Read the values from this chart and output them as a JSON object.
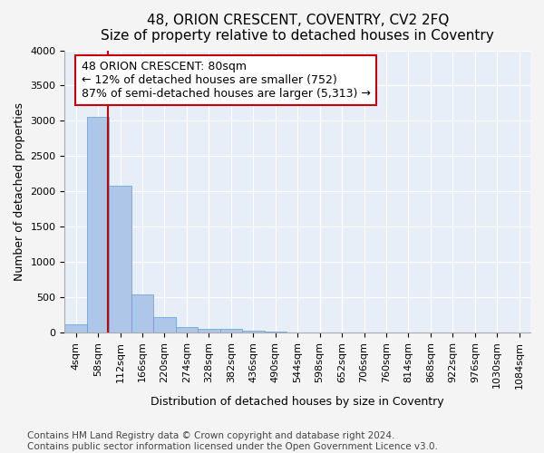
{
  "title": "48, ORION CRESCENT, COVENTRY, CV2 2FQ",
  "subtitle": "Size of property relative to detached houses in Coventry",
  "xlabel": "Distribution of detached houses by size in Coventry",
  "ylabel": "Number of detached properties",
  "bin_labels": [
    "4sqm",
    "58sqm",
    "112sqm",
    "166sqm",
    "220sqm",
    "274sqm",
    "328sqm",
    "382sqm",
    "436sqm",
    "490sqm",
    "544sqm",
    "598sqm",
    "652sqm",
    "706sqm",
    "760sqm",
    "814sqm",
    "868sqm",
    "922sqm",
    "976sqm",
    "1030sqm",
    "1084sqm"
  ],
  "bar_heights": [
    120,
    3050,
    2080,
    540,
    220,
    80,
    50,
    50,
    30,
    10,
    5,
    3,
    2,
    1,
    1,
    0,
    0,
    0,
    0,
    0,
    0
  ],
  "bar_color": "#aec6e8",
  "bar_edge_color": "#5a9ed6",
  "property_line_x": 1.45,
  "property_line_color": "#cc0000",
  "annotation_text": "48 ORION CRESCENT: 80sqm\n← 12% of detached houses are smaller (752)\n87% of semi-detached houses are larger (5,313) →",
  "annotation_box_color": "#ffffff",
  "annotation_box_edge": "#cc0000",
  "ylim": [
    0,
    4000
  ],
  "yticks": [
    0,
    500,
    1000,
    1500,
    2000,
    2500,
    3000,
    3500,
    4000
  ],
  "footer1": "Contains HM Land Registry data © Crown copyright and database right 2024.",
  "footer2": "Contains public sector information licensed under the Open Government Licence v3.0.",
  "bg_color": "#e8eef7",
  "grid_color": "#ffffff",
  "title_fontsize": 11,
  "axis_fontsize": 9,
  "tick_fontsize": 8,
  "annotation_fontsize": 9,
  "footer_fontsize": 7.5
}
